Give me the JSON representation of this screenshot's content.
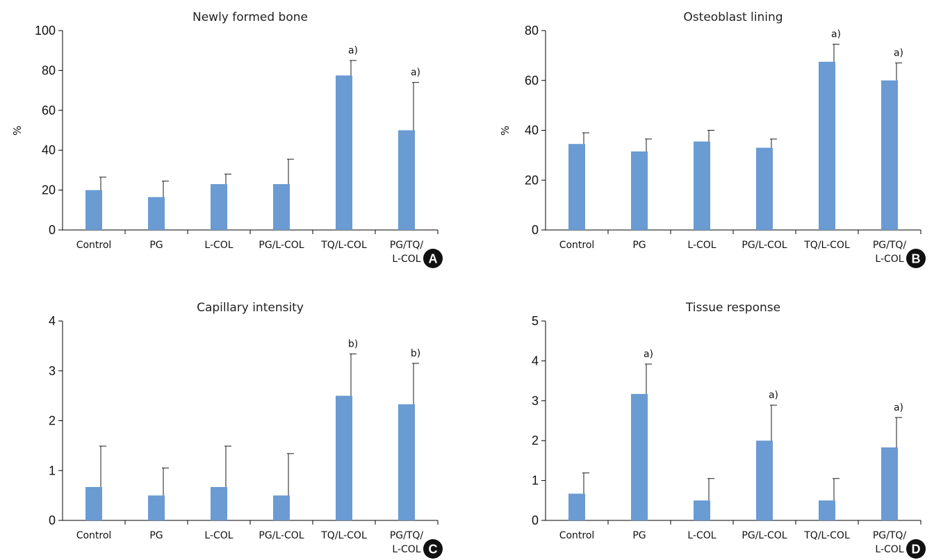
{
  "chart_data": [
    {
      "panel": "A",
      "type": "bar",
      "title": "Newly formed bone",
      "ylabel": "%",
      "ylim": [
        0,
        100
      ],
      "yticks": [
        0,
        20,
        40,
        60,
        80,
        100
      ],
      "categories": [
        "Control",
        "PG",
        "L-COL",
        "PG/L-COL",
        "TQ/L-COL",
        "PG/TQ/L-COL"
      ],
      "category_lines": [
        [
          "Control"
        ],
        [
          "PG"
        ],
        [
          "L-COL"
        ],
        [
          "PG/L-COL"
        ],
        [
          "TQ/L-COL"
        ],
        [
          "PG/TQ/",
          "L-COL"
        ]
      ],
      "values": [
        20,
        16.5,
        23,
        23,
        77.5,
        50
      ],
      "errors": [
        6.5,
        8,
        5,
        12.5,
        7.5,
        24
      ],
      "annotations": [
        "",
        "",
        "",
        "",
        "a)",
        "a)"
      ],
      "bar_color": "#6a9bd2"
    },
    {
      "panel": "B",
      "type": "bar",
      "title": "Osteoblast lining",
      "ylabel": "%",
      "ylim": [
        0,
        80
      ],
      "yticks": [
        0,
        20,
        40,
        60,
        80
      ],
      "categories": [
        "Control",
        "PG",
        "L-COL",
        "PG/L-COL",
        "TQ/L-COL",
        "PG/TQ/L-COL"
      ],
      "category_lines": [
        [
          "Control"
        ],
        [
          "PG"
        ],
        [
          "L-COL"
        ],
        [
          "PG/L-COL"
        ],
        [
          "TQ/L-COL"
        ],
        [
          "PG/TQ/",
          "L-COL"
        ]
      ],
      "values": [
        34.5,
        31.5,
        35.5,
        33,
        67.5,
        60
      ],
      "errors": [
        4.5,
        5,
        4.5,
        3.5,
        7,
        7
      ],
      "annotations": [
        "",
        "",
        "",
        "",
        "a)",
        "a)"
      ],
      "bar_color": "#6a9bd2"
    },
    {
      "panel": "C",
      "type": "bar",
      "title": "Capillary intensity",
      "ylabel": "",
      "ylim": [
        0,
        4
      ],
      "yticks": [
        0,
        1,
        2,
        3,
        4
      ],
      "categories": [
        "Control",
        "PG",
        "L-COL",
        "PG/L-COL",
        "TQ/L-COL",
        "PG/TQ/L-COL"
      ],
      "category_lines": [
        [
          "Control"
        ],
        [
          "PG"
        ],
        [
          "L-COL"
        ],
        [
          "PG/L-COL"
        ],
        [
          "TQ/L-COL"
        ],
        [
          "PG/TQ/",
          "L-COL"
        ]
      ],
      "values": [
        0.67,
        0.5,
        0.67,
        0.5,
        2.5,
        2.33
      ],
      "errors": [
        0.82,
        0.55,
        0.82,
        0.84,
        0.84,
        0.82
      ],
      "annotations": [
        "",
        "",
        "",
        "",
        "b)",
        "b)"
      ],
      "bar_color": "#6a9bd2"
    },
    {
      "panel": "D",
      "type": "bar",
      "title": "Tissue response",
      "ylabel": "",
      "ylim": [
        0,
        5
      ],
      "yticks": [
        0,
        1,
        2,
        3,
        4,
        5
      ],
      "categories": [
        "Control",
        "PG",
        "L-COL",
        "PG/L-COL",
        "TQ/L-COL",
        "PG/TQ/L-COL"
      ],
      "category_lines": [
        [
          "Control"
        ],
        [
          "PG"
        ],
        [
          "L-COL"
        ],
        [
          "PG/L-COL"
        ],
        [
          "TQ/L-COL"
        ],
        [
          "PG/TQ/",
          "L-COL"
        ]
      ],
      "values": [
        0.67,
        3.17,
        0.5,
        2,
        0.5,
        1.83
      ],
      "errors": [
        0.52,
        0.75,
        0.55,
        0.89,
        0.55,
        0.75
      ],
      "annotations": [
        "",
        "a)",
        "",
        "a)",
        "",
        "a)"
      ],
      "bar_color": "#6a9bd2"
    }
  ]
}
